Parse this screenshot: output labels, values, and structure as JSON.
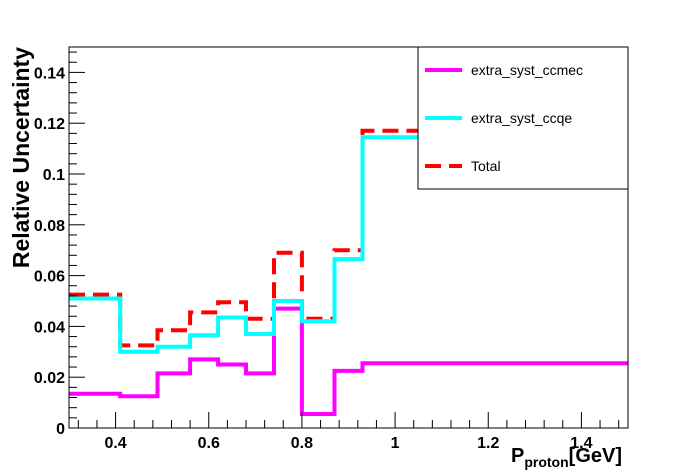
{
  "chart_data": {
    "type": "line",
    "step": true,
    "xlabel": "P",
    "xlabel_sub": "proton",
    "xlabel_unit": "[GeV]",
    "ylabel": "Relative Uncertainty",
    "xlim": [
      0.3,
      1.5
    ],
    "ylim": [
      0,
      0.15
    ],
    "x_ticks": [
      {
        "value": 0.4,
        "label": "0.4"
      },
      {
        "value": 0.6,
        "label": "0.6"
      },
      {
        "value": 0.8,
        "label": "0.8"
      },
      {
        "value": 1.0,
        "label": "1"
      },
      {
        "value": 1.2,
        "label": "1.2"
      },
      {
        "value": 1.4,
        "label": "1.4"
      }
    ],
    "y_ticks": [
      {
        "value": 0,
        "label": "0"
      },
      {
        "value": 0.02,
        "label": "0.02"
      },
      {
        "value": 0.04,
        "label": "0.04"
      },
      {
        "value": 0.06,
        "label": "0.06"
      },
      {
        "value": 0.08,
        "label": "0.08"
      },
      {
        "value": 0.1,
        "label": "0.1"
      },
      {
        "value": 0.12,
        "label": "0.12"
      },
      {
        "value": 0.14,
        "label": "0.14"
      }
    ],
    "bin_edges": [
      0.3,
      0.41,
      0.49,
      0.56,
      0.62,
      0.68,
      0.74,
      0.8,
      0.87,
      0.93,
      1.5
    ],
    "series": [
      {
        "name": "extra_syst_ccmec",
        "color": "#ff00ff",
        "style": "solid",
        "values": [
          0.0135,
          0.0125,
          0.0215,
          0.027,
          0.025,
          0.0215,
          0.047,
          0.0055,
          0.0225,
          0.0255
        ]
      },
      {
        "name": "extra_syst_ccqe",
        "color": "#00ffff",
        "style": "solid",
        "values": [
          0.051,
          0.03,
          0.032,
          0.0365,
          0.0435,
          0.037,
          0.05,
          0.042,
          0.0665,
          0.1145
        ]
      },
      {
        "name": "Total",
        "color": "#ff0000",
        "style": "dashed",
        "values": [
          0.0525,
          0.0325,
          0.0385,
          0.0455,
          0.0495,
          0.043,
          0.069,
          0.043,
          0.07,
          0.117
        ]
      }
    ],
    "legend_position": "top-right"
  }
}
